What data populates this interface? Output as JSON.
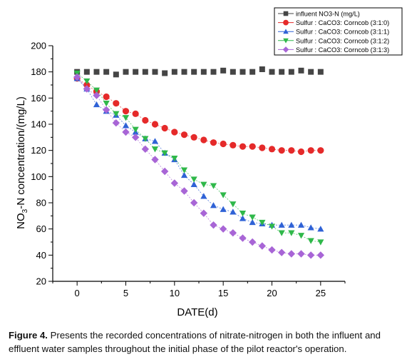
{
  "chart_data": {
    "type": "scatter",
    "xlabel": "DATE(d)",
    "ylabel_parts": [
      "NO",
      "3",
      "-N concentration/(mg/L)"
    ],
    "xlim": [
      -2.5,
      27.5
    ],
    "ylim": [
      20,
      200
    ],
    "xticks": [
      0,
      5,
      10,
      15,
      20,
      25
    ],
    "yticks": [
      20,
      40,
      60,
      80,
      100,
      120,
      140,
      160,
      180,
      200
    ],
    "x": [
      0,
      1,
      2,
      3,
      4,
      5,
      6,
      7,
      8,
      9,
      10,
      11,
      12,
      13,
      14,
      15,
      16,
      17,
      18,
      19,
      20,
      21,
      22,
      23,
      24,
      25
    ],
    "legend_position": "top-right",
    "series": [
      {
        "name": "influent NO3-N (mg/L)",
        "marker": "square",
        "color": "#454545",
        "connected": false,
        "values": [
          180,
          180,
          180,
          180,
          178,
          180,
          180,
          180,
          180,
          179,
          180,
          180,
          180,
          180,
          180,
          181,
          180,
          180,
          180,
          182,
          180,
          180,
          180,
          181,
          180,
          180
        ]
      },
      {
        "name": "Sulfur : CaCO3: Corncob (3:1:0)",
        "marker": "circle",
        "color": "#e52a2a",
        "connected": true,
        "values": [
          175,
          170,
          165,
          161,
          156,
          150,
          148,
          143,
          140,
          137,
          134,
          132,
          130,
          128,
          126,
          125,
          124,
          123,
          123,
          122,
          121,
          120,
          120,
          119,
          120,
          120
        ]
      },
      {
        "name": "Sulfur : CaCO3: Corncob (3:1:1)",
        "marker": "triangle-up",
        "color": "#2f62d6",
        "connected": true,
        "values": [
          175,
          167,
          155,
          150,
          147,
          139,
          134,
          129,
          127,
          118,
          113,
          101,
          94,
          85,
          78,
          75,
          73,
          68,
          65,
          64,
          63,
          63,
          63,
          63,
          61,
          60
        ]
      },
      {
        "name": "Sulfur : CaCO3: Corncob (3:1:2)",
        "marker": "triangle-down",
        "color": "#2fb84a",
        "connected": true,
        "values": [
          179,
          173,
          166,
          156,
          148,
          145,
          136,
          129,
          121,
          118,
          114,
          105,
          98,
          94,
          93,
          86,
          79,
          72,
          69,
          65,
          62,
          57,
          57,
          55,
          51,
          50
        ]
      },
      {
        "name": "Sulfur : CaCO3: Corncob (3:1:3)",
        "marker": "diamond",
        "color": "#a865d6",
        "connected": true,
        "values": [
          176,
          167,
          162,
          151,
          141,
          134,
          130,
          121,
          113,
          104,
          95,
          89,
          80,
          72,
          63,
          60,
          57,
          53,
          50,
          47,
          44,
          42,
          41,
          41,
          40,
          40
        ]
      }
    ]
  },
  "caption": {
    "label": "Figure 4.",
    "text": " Presents the recorded concentrations of nitrate-nitrogen in both the influent and effluent water samples throughout the initial phase of the pilot reactor's operation."
  }
}
